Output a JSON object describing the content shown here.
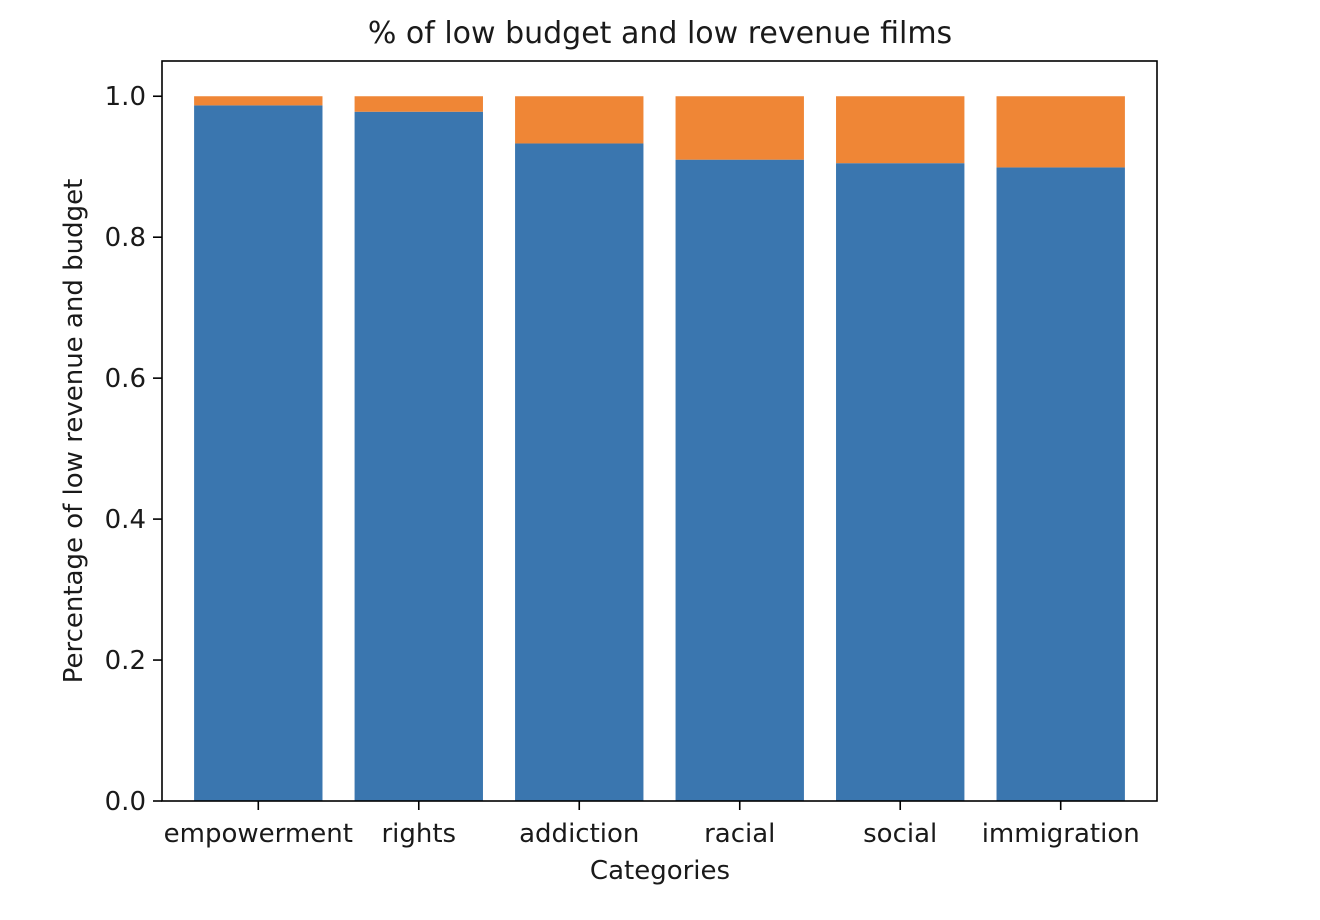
{
  "chart_data": {
    "type": "bar",
    "stacked": true,
    "title": "% of low budget and low revenue films",
    "xlabel": "Categories",
    "ylabel": "Percentage of low revenue and budget",
    "categories": [
      "empowerment",
      "rights",
      "addiction",
      "racial",
      "social",
      "immigration"
    ],
    "series": [
      {
        "values": [
          0.987,
          0.978,
          0.933,
          0.91,
          0.905,
          0.899
        ],
        "color": "#3a76af"
      },
      {
        "values": [
          0.013,
          0.022,
          0.067,
          0.09,
          0.095,
          0.101
        ],
        "color": "#ef8636"
      }
    ],
    "ylim": [
      0,
      1.05
    ],
    "yticks": [
      0.0,
      0.2,
      0.4,
      0.6,
      0.8,
      1.0
    ],
    "ytick_labels": [
      "0.0",
      "0.2",
      "0.4",
      "0.6",
      "0.8",
      "1.0"
    ],
    "grid": false,
    "legend": "none"
  }
}
